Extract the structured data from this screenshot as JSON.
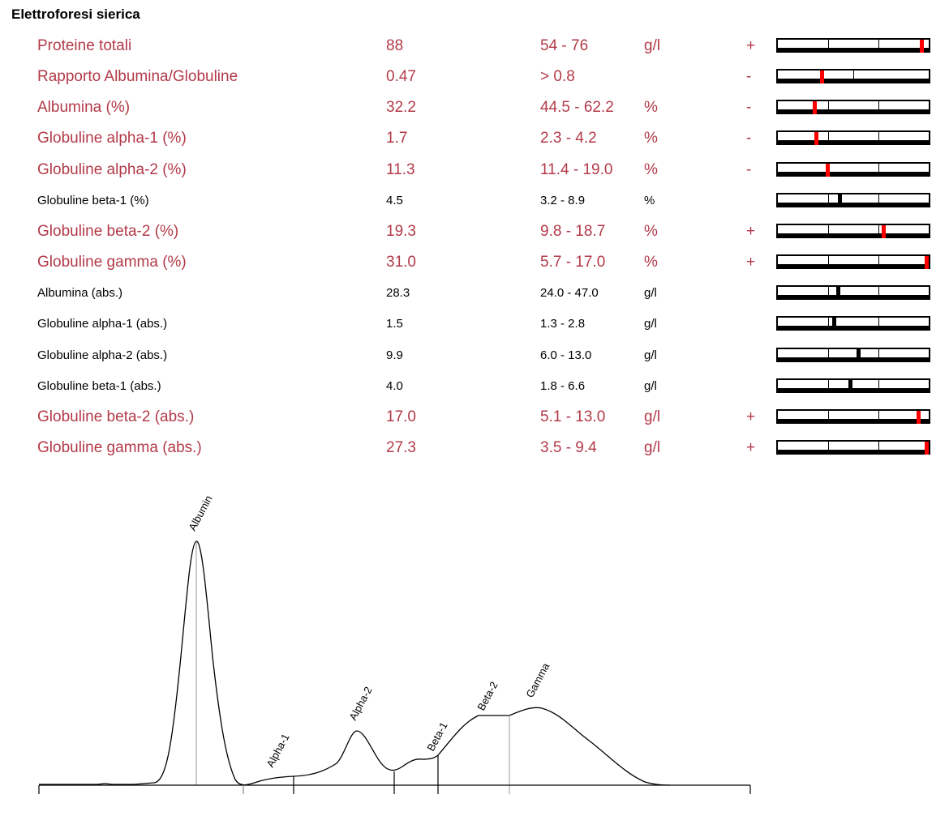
{
  "title": "Elettroforesi sierica",
  "rows": [
    {
      "name": "Proteine totali",
      "value": "88",
      "range": "54 - 76",
      "unit": "g/l",
      "flag": "+",
      "abnormal": true,
      "level": 0.95,
      "ticks": 2
    },
    {
      "name": "Rapporto Albumina/Globuline",
      "value": "0.47",
      "range": "> 0.8",
      "unit": "",
      "flag": "-",
      "abnormal": true,
      "level": 0.29,
      "ticks": 1
    },
    {
      "name": "Albumina (%)",
      "value": "32.2",
      "range": "44.5 - 62.2",
      "unit": "%",
      "flag": "-",
      "abnormal": true,
      "level": 0.24,
      "ticks": 2
    },
    {
      "name": "Globuline alpha-1 (%)",
      "value": "1.7",
      "range": "2.3 - 4.2",
      "unit": "%",
      "flag": "-",
      "abnormal": true,
      "level": 0.25,
      "ticks": 2
    },
    {
      "name": "Globuline alpha-2 (%)",
      "value": "11.3",
      "range": "11.4 - 19.0",
      "unit": "%",
      "flag": "-",
      "abnormal": true,
      "level": 0.33,
      "ticks": 2
    },
    {
      "name": "Globuline beta-1 (%)",
      "value": "4.5",
      "range": "3.2 - 8.9",
      "unit": "%",
      "flag": "",
      "abnormal": false,
      "level": 0.41,
      "ticks": 2
    },
    {
      "name": "Globuline beta-2 (%)",
      "value": "19.3",
      "range": "9.8 - 18.7",
      "unit": "%",
      "flag": "+",
      "abnormal": true,
      "level": 0.7,
      "ticks": 2
    },
    {
      "name": "Globuline gamma (%)",
      "value": "31.0",
      "range": "5.7 - 17.0",
      "unit": "%",
      "flag": "+",
      "abnormal": true,
      "level": 1.0,
      "ticks": 2
    },
    {
      "name": "Albumina (abs.)",
      "value": "28.3",
      "range": "24.0 - 47.0",
      "unit": "g/l",
      "flag": "",
      "abnormal": false,
      "level": 0.4,
      "ticks": 2
    },
    {
      "name": "Globuline alpha-1 (abs.)",
      "value": "1.5",
      "range": "1.3 - 2.8",
      "unit": "g/l",
      "flag": "",
      "abnormal": false,
      "level": 0.37,
      "ticks": 2
    },
    {
      "name": "Globuline alpha-2 (abs.)",
      "value": "9.9",
      "range": "6.0 - 13.0",
      "unit": "g/l",
      "flag": "",
      "abnormal": false,
      "level": 0.53,
      "ticks": 2
    },
    {
      "name": "Globuline beta-1 (abs.)",
      "value": "4.0",
      "range": "1.8 - 6.6",
      "unit": "g/l",
      "flag": "",
      "abnormal": false,
      "level": 0.48,
      "ticks": 2
    },
    {
      "name": "Globuline beta-2 (abs.)",
      "value": "17.0",
      "range": "5.1 - 13.0",
      "unit": "g/l",
      "flag": "+",
      "abnormal": true,
      "level": 0.93,
      "ticks": 2
    },
    {
      "name": "Globuline gamma (abs.)",
      "value": "27.3",
      "range": "3.5 - 9.4",
      "unit": "g/l",
      "flag": "+",
      "abnormal": true,
      "level": 1.0,
      "ticks": 2
    }
  ],
  "colors": {
    "abnormal_text": "#b23a48",
    "marker_abnormal": "#ff0000",
    "marker_normal": "#000000"
  },
  "electropherogram": {
    "peak_labels": [
      "Albumin",
      "Alpha-1",
      "Alpha-2",
      "Beta-1",
      "Beta-2",
      "Gamma"
    ]
  }
}
